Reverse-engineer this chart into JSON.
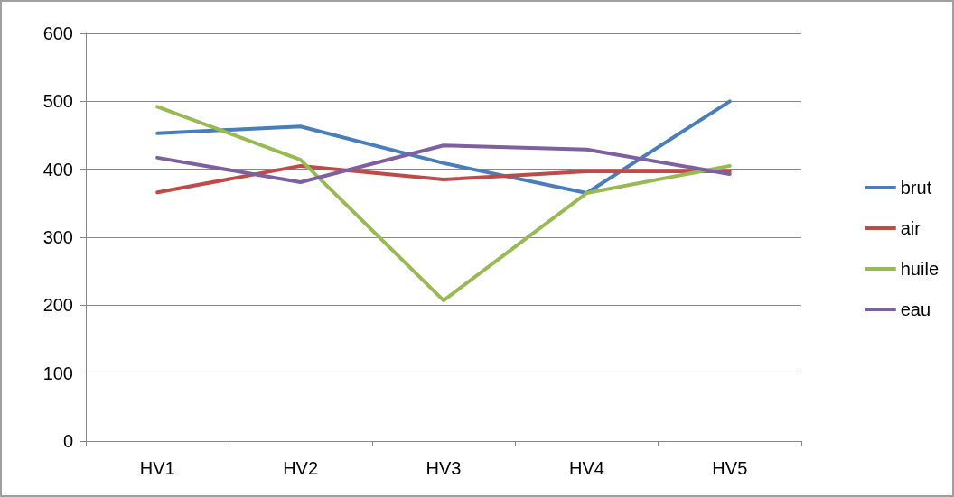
{
  "chart_data": {
    "type": "line",
    "categories": [
      "HV1",
      "HV2",
      "HV3",
      "HV4",
      "HV5"
    ],
    "series": [
      {
        "name": "brut",
        "color": "#4a7ebb",
        "values": [
          453,
          463,
          409,
          365,
          500
        ]
      },
      {
        "name": "air",
        "color": "#be4b48",
        "values": [
          366,
          405,
          385,
          397,
          397
        ]
      },
      {
        "name": "huile",
        "color": "#98b954",
        "values": [
          492,
          414,
          207,
          365,
          405
        ]
      },
      {
        "name": "eau",
        "color": "#7d60a0",
        "values": [
          417,
          381,
          435,
          429,
          393
        ]
      }
    ],
    "ylim": [
      0,
      600
    ],
    "yticks": [
      0,
      100,
      200,
      300,
      400,
      500,
      600
    ],
    "grid": "y",
    "legend": "right",
    "marker": "none",
    "line_style": "solid"
  }
}
